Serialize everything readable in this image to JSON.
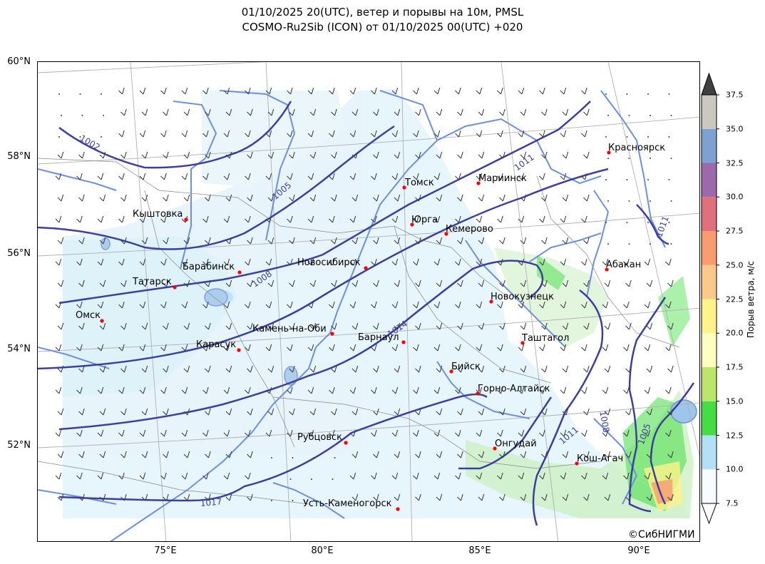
{
  "title": {
    "line1": "01/10/2025 20(UTC), ветер и порывы на 10м, PMSL",
    "line2": "COSMO-Ru2Sib (ICON) от 01/10/2025 00(UTC) +020"
  },
  "axes": {
    "lat_labels": [
      "60°N",
      "58°N",
      "56°N",
      "54°N",
      "52°N"
    ],
    "lon_labels": [
      "75°E",
      "80°E",
      "85°E",
      "90°E"
    ]
  },
  "colorbar": {
    "title": "Порыв ветра, м/с",
    "levels": [
      "7.5",
      "10.0",
      "12.5",
      "15.0",
      "17.5",
      "20.0",
      "22.5",
      "25.0",
      "27.5",
      "30.0",
      "32.5",
      "35.0",
      "37.5"
    ],
    "colors": [
      "#f7fbff",
      "#b3e0f5",
      "#44dd44",
      "#bbe66a",
      "#ffffc0",
      "#fdf38a",
      "#fbc98a",
      "#f89b6f",
      "#e0707a",
      "#9b6aac",
      "#7da2d2",
      "#cbc8c2"
    ],
    "over_color": "#404040",
    "under_color": "#ffffff"
  },
  "isobars": [
    "1002",
    "1005",
    "1008",
    "1011",
    "1011",
    "1011",
    "1014",
    "1017",
    "1008",
    "1005"
  ],
  "cities": [
    {
      "name": "Красноярск"
    },
    {
      "name": "Томск"
    },
    {
      "name": "Мариинск"
    },
    {
      "name": "Кыштовка"
    },
    {
      "name": "Юрга"
    },
    {
      "name": "Кемерово"
    },
    {
      "name": "Абакан"
    },
    {
      "name": "Барабинск"
    },
    {
      "name": "Новосибирск"
    },
    {
      "name": "Татарск"
    },
    {
      "name": "Новокузнецк"
    },
    {
      "name": "Омск"
    },
    {
      "name": "Камень-на-Оби"
    },
    {
      "name": "Барнаул"
    },
    {
      "name": "Таштагол"
    },
    {
      "name": "Карасук"
    },
    {
      "name": "Бийск"
    },
    {
      "name": "Горно-Алтайск"
    },
    {
      "name": "Рубцовск"
    },
    {
      "name": "Онгудай"
    },
    {
      "name": "Кош-Агач"
    },
    {
      "name": "Усть-Каменогорск"
    }
  ],
  "credit": "©СибНИГМИ"
}
